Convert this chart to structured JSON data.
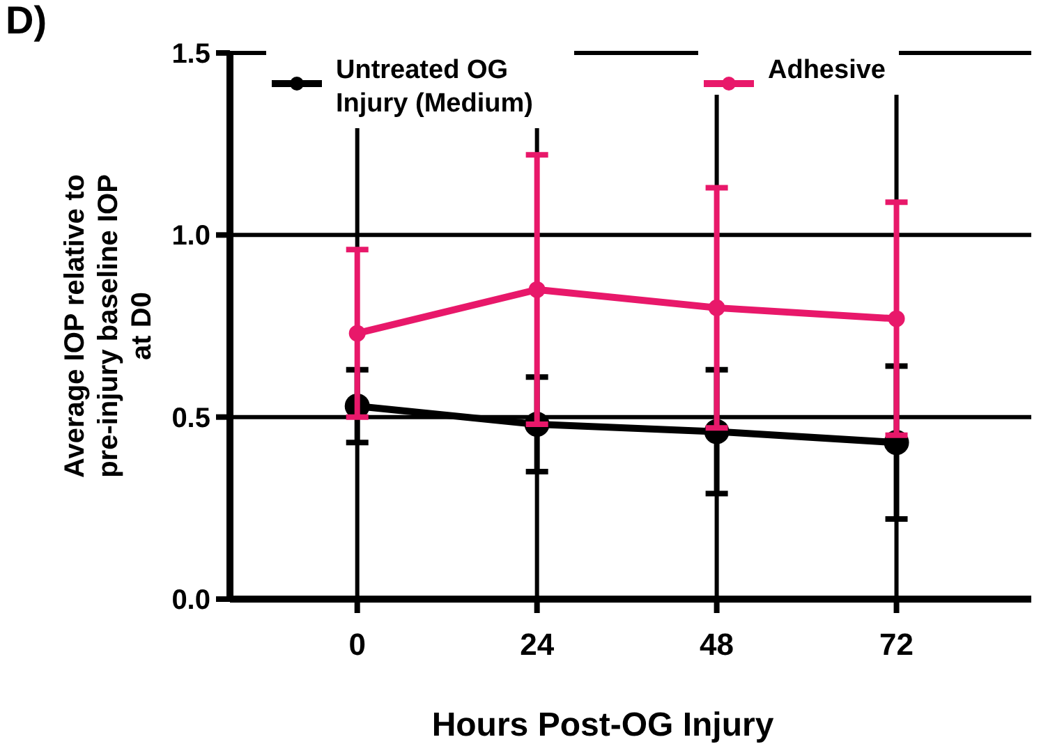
{
  "chart_data": {
    "type": "line",
    "title": "D)",
    "xlabel": "Hours Post-OG Injury",
    "ylabel": "Average IOP relative to pre-injury baseline IOP at D0",
    "x": [
      0,
      24,
      48,
      72
    ],
    "xlim": [
      -17,
      90
    ],
    "xticks": [
      0,
      24,
      48,
      72
    ],
    "ylim": [
      0,
      1.5
    ],
    "yticks": [
      {
        "value": 0,
        "label": "0.0"
      },
      {
        "value": 0.5,
        "label": "0.5"
      },
      {
        "value": 1,
        "label": "1.0"
      },
      {
        "value": 1.5,
        "label": "1.5"
      }
    ],
    "grid": true,
    "legend": "top",
    "marker": "circle",
    "line_style": "solid",
    "series": [
      {
        "name": "Untreated OG Injury (Medium)",
        "color": "#000000",
        "values": [
          0.53,
          0.48,
          0.46,
          0.43
        ],
        "errors": [
          0.1,
          0.13,
          0.17,
          0.21
        ]
      },
      {
        "name": "Adhesive",
        "color": "#e8186a",
        "values": [
          0.73,
          0.85,
          0.8,
          0.77
        ],
        "errors": [
          0.23,
          0.37,
          0.33,
          0.32
        ]
      }
    ]
  }
}
